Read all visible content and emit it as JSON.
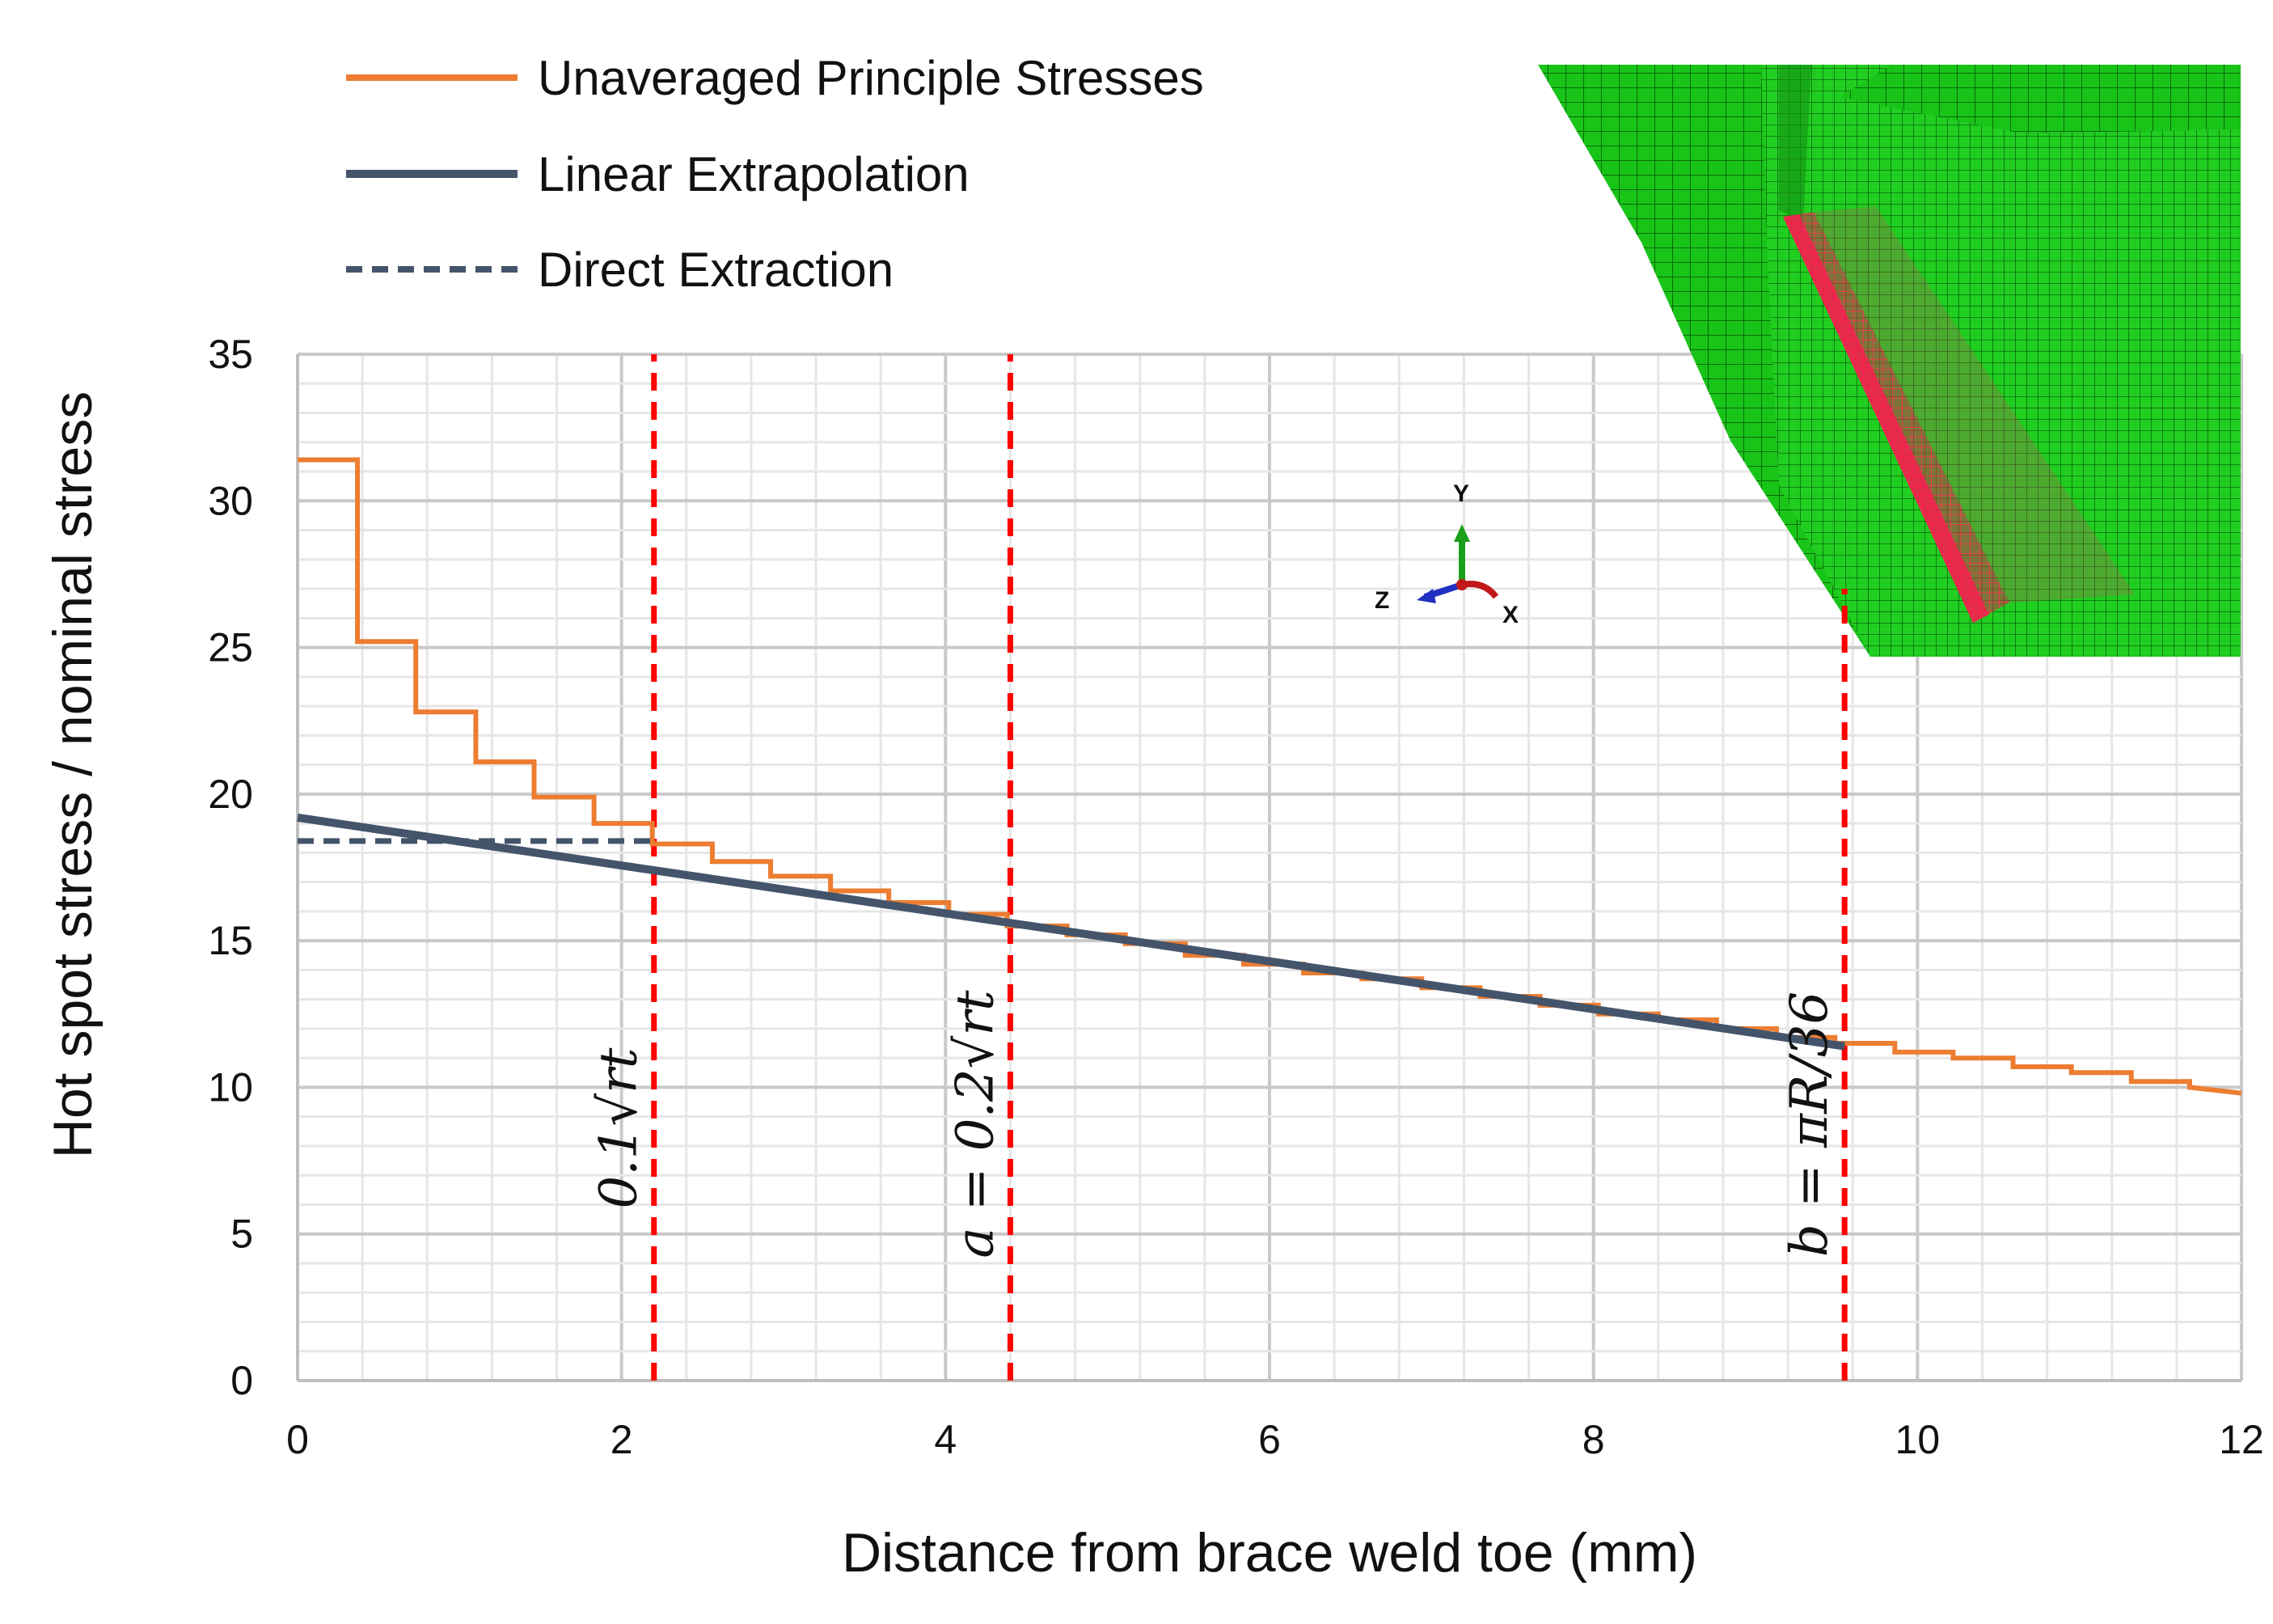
{
  "chart_data": {
    "type": "line",
    "xlabel": "Distance from brace weld toe (mm)",
    "ylabel": "Hot spot stress / nominal stress",
    "xlim": [
      0,
      12
    ],
    "ylim": [
      0,
      35
    ],
    "x_ticks": [
      0,
      2,
      4,
      6,
      8,
      10,
      12
    ],
    "y_ticks": [
      0,
      5,
      10,
      15,
      20,
      25,
      30,
      35
    ],
    "grid": true,
    "legend_position": "top-left",
    "series": [
      {
        "name": "Unaveraged Principle Stresses",
        "style": "step",
        "color": "#ED7D31",
        "x": [
          0,
          0.37,
          0.37,
          0.73,
          0.73,
          1.1,
          1.1,
          1.46,
          1.46,
          1.83,
          1.83,
          2.19,
          2.19,
          2.56,
          2.56,
          2.92,
          2.92,
          3.29,
          3.29,
          3.65,
          3.65,
          4.02,
          4.02,
          4.38,
          4.38,
          4.75,
          4.75,
          5.11,
          5.11,
          5.48,
          5.48,
          5.84,
          5.84,
          6.21,
          6.21,
          6.57,
          6.57,
          6.94,
          6.94,
          7.3,
          7.3,
          7.67,
          7.67,
          8.03,
          8.03,
          8.4,
          8.4,
          8.76,
          8.76,
          9.13,
          9.13,
          9.49,
          9.49,
          9.86,
          9.86,
          10.22,
          10.22,
          10.59,
          10.59,
          10.95,
          10.95,
          11.32,
          11.32,
          11.68,
          11.68,
          12.0
        ],
        "y": [
          31.4,
          31.4,
          25.2,
          25.2,
          22.8,
          22.8,
          21.1,
          21.1,
          19.9,
          19.9,
          19.0,
          19.0,
          18.3,
          18.3,
          17.7,
          17.7,
          17.2,
          17.2,
          16.7,
          16.7,
          16.3,
          16.3,
          15.9,
          15.9,
          15.5,
          15.5,
          15.2,
          15.2,
          14.9,
          14.9,
          14.5,
          14.5,
          14.2,
          14.2,
          13.9,
          13.9,
          13.7,
          13.7,
          13.4,
          13.4,
          13.1,
          13.1,
          12.8,
          12.8,
          12.5,
          12.5,
          12.3,
          12.3,
          12.0,
          12.0,
          11.7,
          11.7,
          11.5,
          11.5,
          11.2,
          11.2,
          11.0,
          11.0,
          10.7,
          10.7,
          10.5,
          10.5,
          10.2,
          10.2,
          10.0,
          9.8
        ]
      },
      {
        "name": "Linear Extrapolation",
        "style": "solid",
        "color": "#44546A",
        "x": [
          0,
          9.55
        ],
        "y": [
          19.2,
          11.4
        ]
      },
      {
        "name": "Direct Extraction",
        "style": "dashed",
        "color": "#44546A",
        "x": [
          0,
          2.2
        ],
        "y": [
          18.4,
          18.4
        ]
      }
    ],
    "vertical_lines": [
      {
        "x": 2.2,
        "label": "0.1√rt",
        "color": "#FF0000",
        "y_top": 35
      },
      {
        "x": 4.4,
        "label": "a = 0.2√rt",
        "color": "#FF0000",
        "y_top": 35
      },
      {
        "x": 9.55,
        "label": "b = πR/36",
        "color": "#FF0000",
        "y_top": 27
      }
    ],
    "inset": {
      "description_icon": "fe-mesh-inset-icon",
      "axis_triad": {
        "y": "Y",
        "z": "Z",
        "x": "X"
      }
    }
  }
}
